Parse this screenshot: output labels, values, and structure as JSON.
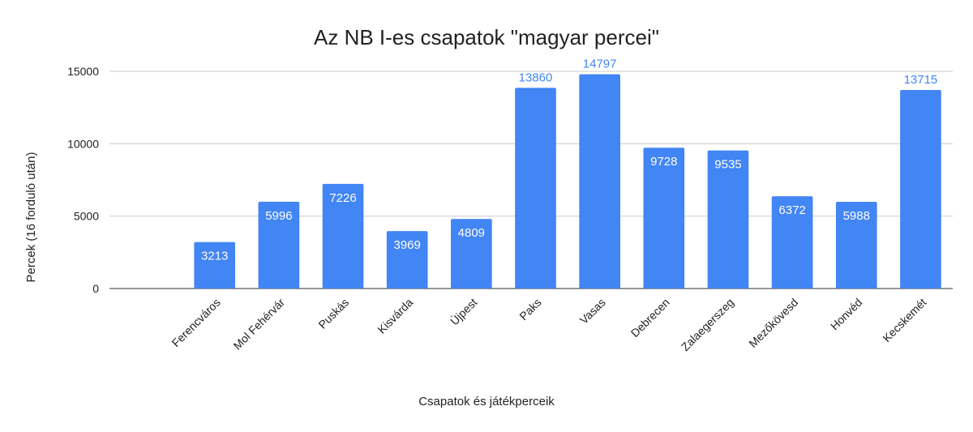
{
  "chart_data": {
    "type": "bar",
    "title": "Az NB I-es csapatok \"magyar percei\"",
    "x_label": "Csapatok és játékperceik",
    "y_label": "Percek (16 forduló után)",
    "categories": [
      null,
      "Ferencváros",
      "Mol Fehérvár",
      "Puskás",
      "Kisvárda",
      "Újpest",
      "Paks",
      "Vasas",
      "Debrecen",
      "Zalaegerszeg",
      "Mezőkövesd",
      "Honvéd",
      "Kecskemét"
    ],
    "values": [
      null,
      3213,
      5996,
      7226,
      3969,
      4809,
      13860,
      14797,
      9728,
      9535,
      6372,
      5988,
      13715
    ],
    "color": "#4285f4",
    "ylim": [
      0,
      15000
    ],
    "yticks": [
      0,
      5000,
      10000,
      15000
    ],
    "grid": true
  }
}
